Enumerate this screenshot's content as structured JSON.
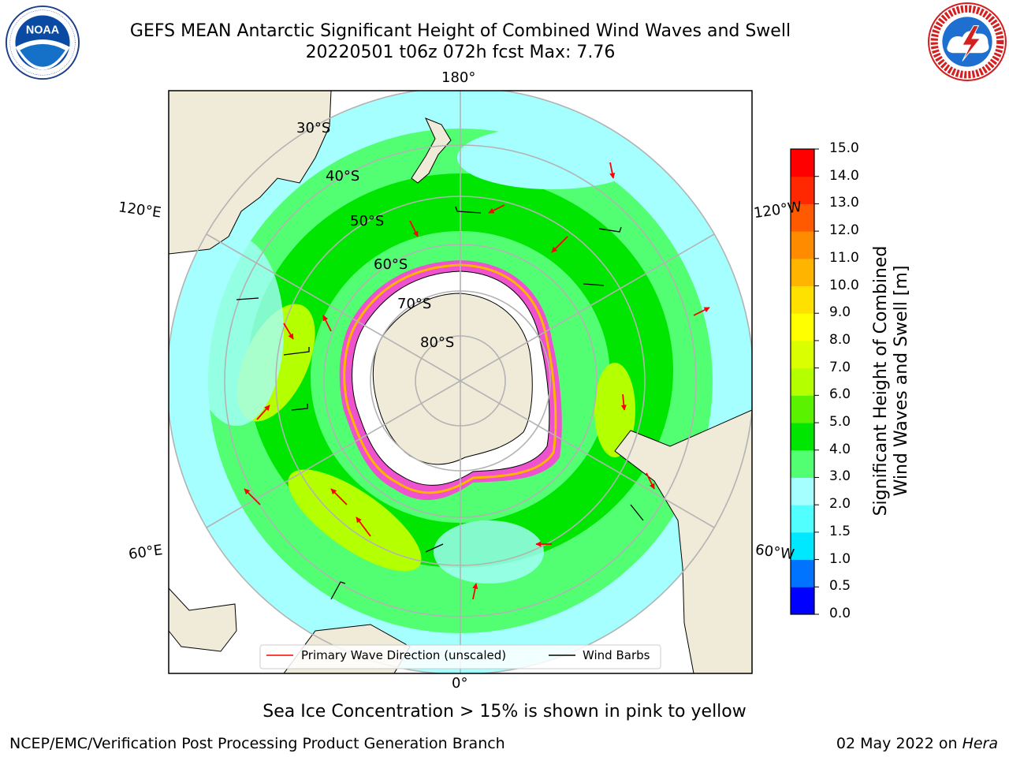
{
  "title": {
    "line1": "GEFS MEAN Antarctic Significant Height of Combined Wind Waves and Swell",
    "line2": "20220501 t06z 072h fcst   Max: 7.76"
  },
  "logos": {
    "left": {
      "name": "NOAA",
      "ring_text": "NATIONAL OCEANIC AND ATMOSPHERIC ADMINISTRATION · U.S. DEPARTMENT OF COMMERCE"
    },
    "right": {
      "name": "NATIONAL WEATHER SERVICE"
    }
  },
  "map": {
    "projection": "south-polar-stereographic",
    "longitude_labels": [
      "180°",
      "120°E",
      "120°W",
      "60°E",
      "60°W",
      "0°"
    ],
    "latitude_labels": [
      "30°S",
      "40°S",
      "50°S",
      "60°S",
      "70°S",
      "80°S"
    ]
  },
  "legend": {
    "wave": "Primary Wave Direction (unscaled)",
    "wind": "Wind Barbs"
  },
  "colorbar": {
    "label_line1": "Significant Height of Combined",
    "label_line2": "Wind Waves and Swell [m]",
    "ticks": [
      "15.0",
      "14.0",
      "13.0",
      "12.0",
      "11.0",
      "10.0",
      "9.0",
      "8.0",
      "7.0",
      "6.0",
      "5.0",
      "4.0",
      "3.0",
      "2.0",
      "1.5",
      "1.0",
      "0.5",
      "0.0"
    ],
    "colors": [
      "#0000ff",
      "#0073ff",
      "#00e8ff",
      "#52ffff",
      "#a5ffff",
      "#52ff73",
      "#00e600",
      "#5bf200",
      "#b4ff00",
      "#d9ff00",
      "#ffff00",
      "#ffe100",
      "#ffb400",
      "#ff8c00",
      "#ff5a00",
      "#ff2800",
      "#ff0000"
    ]
  },
  "sea_ice_note": "Sea Ice Concentration > 15% is shown in pink to yellow",
  "footer": {
    "left": "NCEP/EMC/Verification Post Processing Product Generation Branch",
    "right_prefix": "02 May 2022 on ",
    "right_host": "Hera"
  },
  "chart_data": {
    "type": "heatmap",
    "title": "GEFS MEAN Antarctic Significant Height of Combined Wind Waves and Swell",
    "subtitle": "20220501 t06z 072h fcst   Max: 7.76",
    "max_value": 7.76,
    "units": "m",
    "colorbar_range": [
      0,
      15
    ],
    "colorbar_levels": [
      0,
      0.5,
      1.0,
      1.5,
      2.0,
      3.0,
      4.0,
      5.0,
      6.0,
      7.0,
      8.0,
      9.0,
      10.0,
      11.0,
      12.0,
      13.0,
      14.0,
      15.0
    ],
    "series": [
      {
        "name": "Primary Wave Direction (unscaled)",
        "color": "#ff0000"
      },
      {
        "name": "Wind Barbs",
        "color": "#000000"
      }
    ],
    "legend_position": "bottom-center"
  }
}
